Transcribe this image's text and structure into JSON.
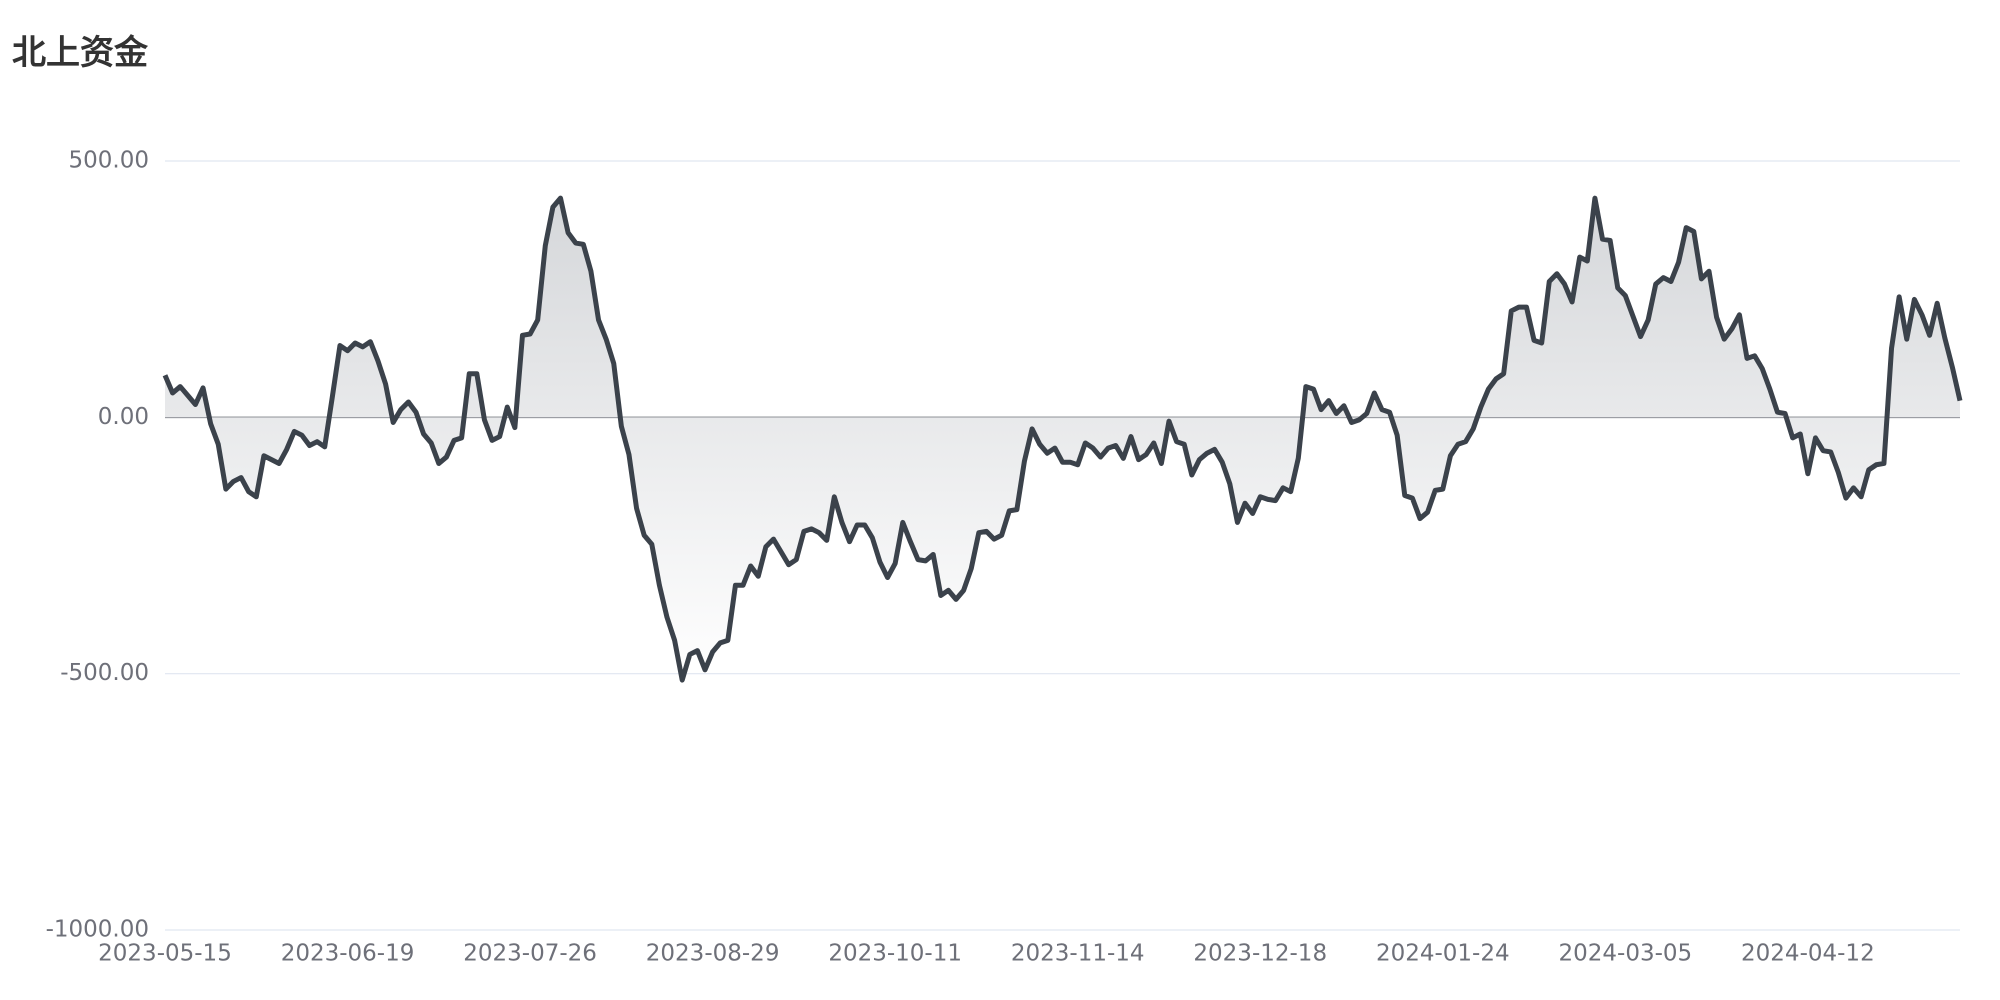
{
  "chart_data": {
    "type": "area-line",
    "title": "北上资金",
    "categories": [
      "2023-05-15",
      null,
      null,
      null,
      null,
      null,
      null,
      null,
      null,
      null,
      null,
      null,
      null,
      null,
      null,
      null,
      null,
      null,
      null,
      null,
      null,
      null,
      null,
      null,
      "2023-06-19",
      null,
      null,
      null,
      null,
      null,
      null,
      null,
      null,
      null,
      null,
      null,
      null,
      null,
      null,
      null,
      null,
      null,
      null,
      null,
      null,
      null,
      null,
      null,
      "2023-07-26",
      null,
      null,
      null,
      null,
      null,
      null,
      null,
      null,
      null,
      null,
      null,
      null,
      null,
      null,
      null,
      null,
      null,
      null,
      null,
      null,
      null,
      null,
      null,
      "2023-08-29",
      null,
      null,
      null,
      null,
      null,
      null,
      null,
      null,
      null,
      null,
      null,
      null,
      null,
      null,
      null,
      null,
      null,
      null,
      null,
      null,
      null,
      null,
      null,
      "2023-10-11",
      null,
      null,
      null,
      null,
      null,
      null,
      null,
      null,
      null,
      null,
      null,
      null,
      null,
      null,
      null,
      null,
      null,
      null,
      null,
      null,
      null,
      null,
      null,
      "2023-11-14",
      null,
      null,
      null,
      null,
      null,
      null,
      null,
      null,
      null,
      null,
      null,
      null,
      null,
      null,
      null,
      null,
      null,
      null,
      null,
      null,
      null,
      null,
      null,
      "2023-12-18",
      null,
      null,
      null,
      null,
      null,
      null,
      null,
      null,
      null,
      null,
      null,
      null,
      null,
      null,
      null,
      null,
      null,
      null,
      null,
      null,
      null,
      null,
      null,
      "2024-01-24",
      null,
      null,
      null,
      null,
      null,
      null,
      null,
      null,
      null,
      null,
      null,
      null,
      null,
      null,
      null,
      null,
      null,
      null,
      null,
      null,
      null,
      null,
      null,
      "2024-03-05",
      null,
      null,
      null,
      null,
      null,
      null,
      null,
      null,
      null,
      null,
      null,
      null,
      null,
      null,
      null,
      null,
      null,
      null,
      null,
      null,
      null,
      null,
      null,
      "2024-04-12",
      null,
      null,
      null,
      null,
      null,
      null,
      null,
      null,
      null,
      null,
      null,
      null,
      null,
      null,
      null,
      null,
      null,
      null,
      null,
      null
    ],
    "values": [
      82,
      47.5,
      60,
      42.5,
      25,
      57.5,
      -12.5,
      -52.5,
      -140,
      -125,
      -117.5,
      -145,
      -155,
      -75,
      -82.5,
      -90,
      -62.5,
      -27.5,
      -35,
      -55,
      -47.5,
      -57.5,
      40,
      140,
      130,
      145,
      137.5,
      147.5,
      110,
      65,
      -10,
      15,
      30,
      10,
      -32.5,
      -50,
      -90,
      -77.5,
      -45,
      -40,
      85,
      85,
      -5,
      -45,
      -37.5,
      20,
      -20,
      160,
      162.5,
      190,
      335,
      410,
      427.5,
      360,
      340,
      337.5,
      285,
      190,
      152.5,
      105,
      -17.5,
      -72.5,
      -177.5,
      -230,
      -247.5,
      -327.5,
      -390,
      -435,
      -512.5,
      -462.5,
      -455,
      -492.5,
      -457.5,
      -440,
      -435,
      -327.5,
      -327.5,
      -290,
      -310,
      -252.5,
      -237.5,
      -262.5,
      -287.5,
      -277.5,
      -222.5,
      -217.5,
      -225,
      -240,
      -155,
      -205,
      -242.5,
      -210,
      -210,
      -235,
      -282.5,
      -312.5,
      -285,
      -205,
      -242.5,
      -277.5,
      -280,
      -267.5,
      -347.5,
      -337.5,
      -355,
      -337.5,
      -295,
      -225,
      -222.5,
      -237.5,
      -230,
      -182.5,
      -180,
      -85,
      -22.5,
      -52.5,
      -70,
      -60,
      -87.5,
      -87.5,
      -92.5,
      -50,
      -60,
      -77.5,
      -60,
      -55,
      -80,
      -37.5,
      -82.5,
      -72.5,
      -50,
      -90,
      -7.5,
      -47.5,
      -52.5,
      -112.5,
      -82.5,
      -70,
      -62.5,
      -87.5,
      -130,
      -205,
      -167.5,
      -187.5,
      -155,
      -160,
      -162.5,
      -137.5,
      -145,
      -80,
      60,
      55,
      15,
      32.5,
      7.5,
      22.5,
      -10,
      -5,
      7.5,
      47.5,
      15,
      10,
      -35,
      -152.5,
      -157.5,
      -197.5,
      -185,
      -142.5,
      -140,
      -75,
      -52.5,
      -47.5,
      -22.5,
      20,
      55,
      75,
      85,
      207.5,
      215,
      215,
      150,
      145,
      265,
      280,
      260,
      225,
      312.5,
      305,
      427.5,
      347.5,
      345,
      252.5,
      237.5,
      197.5,
      157.5,
      190,
      260,
      272.5,
      265,
      302.5,
      370,
      362.5,
      270,
      285,
      195,
      152.5,
      172.5,
      200,
      115,
      120,
      95,
      55,
      10,
      7.5,
      -40,
      -32.5,
      -110,
      -40,
      -65,
      -67.5,
      -107.5,
      -157.5,
      -137.5,
      -155,
      -102.5,
      -92.5,
      -90,
      135,
      235,
      152.5,
      230,
      200,
      160,
      222.5,
      155,
      97.5,
      32.5
    ],
    "color": "#3b424b",
    "ylim": [
      -1000,
      500
    ],
    "yticks": [
      {
        "value": -1000,
        "label": "-1000.00"
      },
      {
        "value": -500,
        "label": "-500.00"
      },
      {
        "value": 0,
        "label": "0.00"
      },
      {
        "value": 500,
        "label": "500.00"
      }
    ],
    "grid": true
  }
}
